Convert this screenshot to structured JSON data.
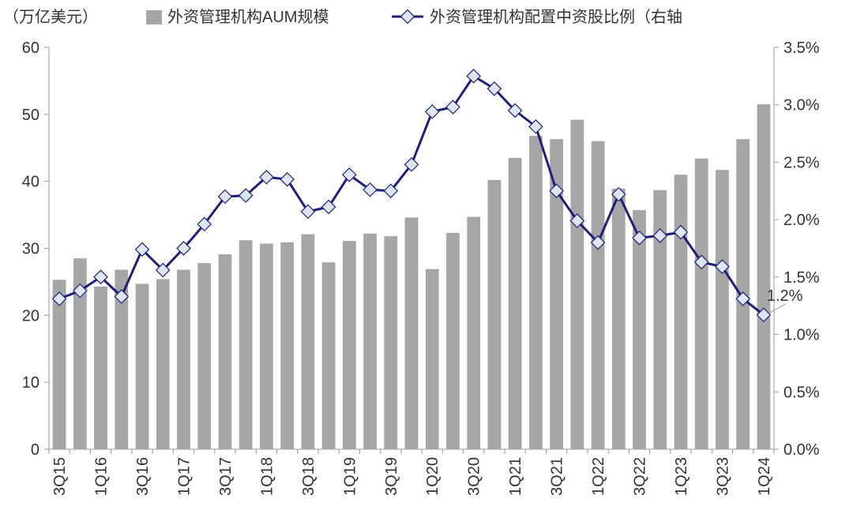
{
  "chart_data": {
    "type": "bar+line",
    "unit_label": "（万亿美元）",
    "categories": [
      "3Q15",
      "4Q15",
      "1Q16",
      "2Q16",
      "3Q16",
      "4Q16",
      "1Q17",
      "2Q17",
      "3Q17",
      "4Q17",
      "1Q18",
      "2Q18",
      "3Q18",
      "4Q18",
      "1Q19",
      "2Q19",
      "3Q19",
      "4Q19",
      "1Q20",
      "2Q20",
      "3Q20",
      "4Q20",
      "1Q21",
      "2Q21",
      "3Q21",
      "4Q21",
      "1Q22",
      "2Q22",
      "3Q22",
      "4Q22",
      "1Q23",
      "2Q23",
      "3Q23",
      "4Q23",
      "1Q24"
    ],
    "x_tick_labels": [
      "3Q15",
      "1Q16",
      "3Q16",
      "1Q17",
      "3Q17",
      "1Q18",
      "3Q18",
      "1Q19",
      "3Q19",
      "1Q20",
      "3Q20",
      "1Q21",
      "3Q21",
      "1Q22",
      "3Q22",
      "1Q23",
      "3Q23",
      "1Q24"
    ],
    "series": [
      {
        "name": "外资管理机构AUM规模",
        "type": "bar",
        "axis": "left",
        "values": [
          25.3,
          28.5,
          24.3,
          26.8,
          24.7,
          25.4,
          26.8,
          27.8,
          29.1,
          31.2,
          30.7,
          30.9,
          32.1,
          27.9,
          31.1,
          32.2,
          31.8,
          34.6,
          26.9,
          32.3,
          34.7,
          40.2,
          43.5,
          46.8,
          46.3,
          49.2,
          46.0,
          38.9,
          35.7,
          38.7,
          41.0,
          43.4,
          41.7,
          46.3,
          51.5
        ],
        "color": "#a6a6a6"
      },
      {
        "name": "外资管理机构配置中资股比例（右轴",
        "type": "line",
        "axis": "right",
        "values": [
          1.31,
          1.38,
          1.5,
          1.33,
          1.74,
          1.56,
          1.75,
          1.96,
          2.2,
          2.21,
          2.37,
          2.35,
          2.07,
          2.11,
          2.39,
          2.26,
          2.25,
          2.48,
          2.94,
          2.98,
          3.25,
          3.14,
          2.95,
          2.81,
          2.25,
          1.99,
          1.8,
          2.22,
          1.84,
          1.86,
          1.89,
          1.63,
          1.59,
          1.31,
          1.17
        ],
        "color": "#1f1f7a"
      }
    ],
    "y_left": {
      "min": 0,
      "max": 60,
      "ticks": [
        "0",
        "10",
        "20",
        "30",
        "40",
        "50",
        "60"
      ]
    },
    "y_right": {
      "min": 0,
      "max": 3.5,
      "ticks": [
        "0.0%",
        "0.5%",
        "1.0%",
        "1.5%",
        "2.0%",
        "2.5%",
        "3.0%",
        "3.5%"
      ]
    },
    "annotation": {
      "text": "1.2%",
      "target_index": 34
    },
    "legend_position": "top"
  }
}
